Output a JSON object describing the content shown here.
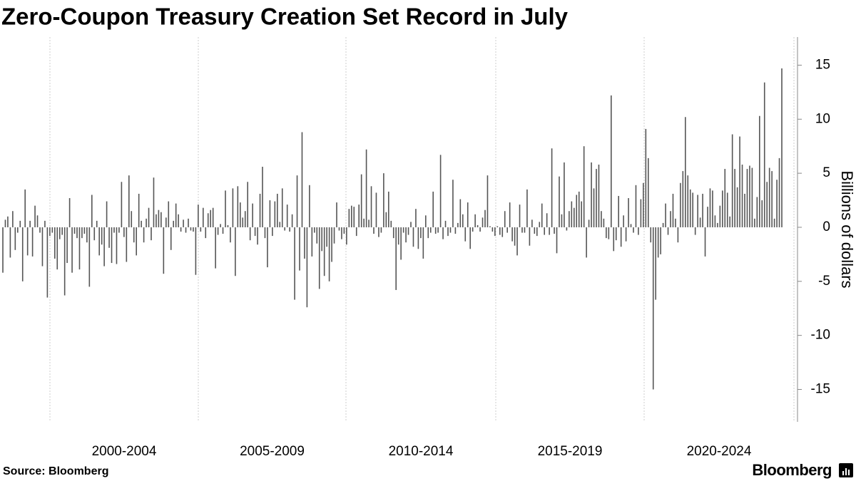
{
  "chart_data": {
    "type": "bar",
    "title": "Zero-Coupon Treasury Creation Set Record in July",
    "y_axis_label": "Billions of dollars",
    "source": "Source: Bloomberg",
    "brand": "Bloomberg",
    "period_labels": [
      "2000-2004",
      "2005-2009",
      "2010-2014",
      "2015-2019",
      "2020-2024"
    ],
    "color": "#555555",
    "ylim": [
      -18,
      17.6
    ],
    "yticks": [
      15,
      10,
      5,
      0,
      -5,
      -10,
      -15
    ],
    "values": [
      -4.2,
      0.7,
      1,
      -2.8,
      1.5,
      -2.1,
      -0.5,
      0.6,
      -5,
      3.5,
      -2.6,
      0.6,
      -2.7,
      2,
      1.1,
      -0.5,
      -3.6,
      0.6,
      -6.5,
      -0.8,
      -0.5,
      -2.9,
      -3.9,
      -1.1,
      -0.7,
      -6.3,
      -3.3,
      2.7,
      -4.2,
      -0.6,
      -1,
      -3.9,
      -1,
      -0.6,
      -1.4,
      -5.5,
      3,
      -1.2,
      0.6,
      -2.6,
      -1.6,
      -3.6,
      2.4,
      -1.9,
      -3.3,
      -0.5,
      -3.4,
      -0.5,
      4.2,
      -0.9,
      -3.2,
      4.8,
      1.5,
      -1.4,
      -2.6,
      3.1,
      0.6,
      -1.4,
      0.8,
      1.8,
      -1.2,
      4.6,
      1.2,
      1.6,
      1.4,
      -4.3,
      0.9,
      2.4,
      -2.1,
      0.6,
      2.2,
      1.2,
      -0.4,
      0.7,
      -0.5,
      0.8,
      -0.3,
      -0.4,
      -4.4,
      2.1,
      -0.4,
      1.8,
      -1,
      1.3,
      1.6,
      1.8,
      -3.8,
      -0.7,
      0.3,
      -0.6,
      3.4,
      0.2,
      -1.4,
      3.6,
      -4.5,
      3.8,
      2.3,
      0.9,
      1.5,
      4.2,
      -1.2,
      2.2,
      -0.8,
      -1.6,
      3.1,
      5.6,
      -1,
      -3.7,
      2.5,
      -0.8,
      2.4,
      3.1,
      0.5,
      3.6,
      -0.3,
      2.1,
      -0.4,
      1.2,
      -6.7,
      4.8,
      -4,
      8.8,
      -2.9,
      -7.4,
      3.9,
      -2.7,
      -0.5,
      -1.5,
      -5.7,
      -2.2,
      -4.5,
      -1.8,
      -5,
      -3.2,
      -1.5,
      2.3,
      -0.3,
      -1.1,
      -0.6,
      -1.6,
      1.7,
      2,
      1.9,
      -0.8,
      2.1,
      4.9,
      0.8,
      7.2,
      0.7,
      3.8,
      -0.6,
      3.2,
      -0.9,
      -0.5,
      5,
      1.4,
      3.3,
      0.6,
      -1,
      -5.8,
      -1.6,
      -3,
      -0.5,
      -1.4,
      -0.7,
      0.5,
      -1.8,
      1.7,
      -2,
      -1,
      -2.9,
      1.1,
      -1,
      -0.5,
      3.3,
      -0.6,
      -0.5,
      6.7,
      -1.1,
      0.6,
      -0.8,
      -0.5,
      4.4,
      -0.6,
      0.4,
      2.6,
      1.2,
      -1.3,
      2.3,
      -2,
      -0.4,
      1.2,
      0.2,
      -0.4,
      0.9,
      1.6,
      4.8,
      0.1,
      -0.4,
      -0.8,
      0.1,
      -0.7,
      -0.9,
      1.5,
      -0.5,
      2.3,
      -1.3,
      -1.7,
      -2.6,
      2.1,
      -0.5,
      -0.5,
      3.5,
      -1.7,
      0.7,
      -0.6,
      -0.8,
      0.5,
      2.2,
      -0.7,
      1.3,
      -0.7,
      7.3,
      -0.6,
      -2.4,
      4.7,
      1.2,
      6,
      -0.3,
      1.5,
      2.4,
      1.8,
      3,
      3.3,
      2.4,
      7.5,
      -2.8,
      0.7,
      6,
      3.6,
      5.4,
      5.8,
      1.5,
      0.8,
      -1,
      -1.1,
      12.2,
      -2.2,
      -1.2,
      2.9,
      -1.8,
      1.1,
      -1.3,
      2.7,
      0.3,
      -0.5,
      3.9,
      -0.7,
      2.6,
      4.1,
      9.1,
      6.4,
      -1.4,
      -15,
      -6.7,
      -2.8,
      -2.5,
      0.4,
      2.2,
      -0.7,
      1.5,
      3.1,
      0.8,
      -1.4,
      4.1,
      5.2,
      10.2,
      4.8,
      3.5,
      3.2,
      -0.7,
      3,
      0.9,
      3.1,
      -2.7,
      1.9,
      3.6,
      3.4,
      1.1,
      0.4,
      2,
      3.4,
      5.4,
      3.2,
      1,
      8.6,
      5.4,
      3.7,
      8.4,
      5.8,
      3.1,
      5.4,
      5.7,
      5.5,
      0.8,
      2.8,
      10.3,
      2.5,
      13.4,
      4.2,
      5.5,
      5.2,
      0.8,
      4.4,
      6.4,
      14.7
    ]
  }
}
